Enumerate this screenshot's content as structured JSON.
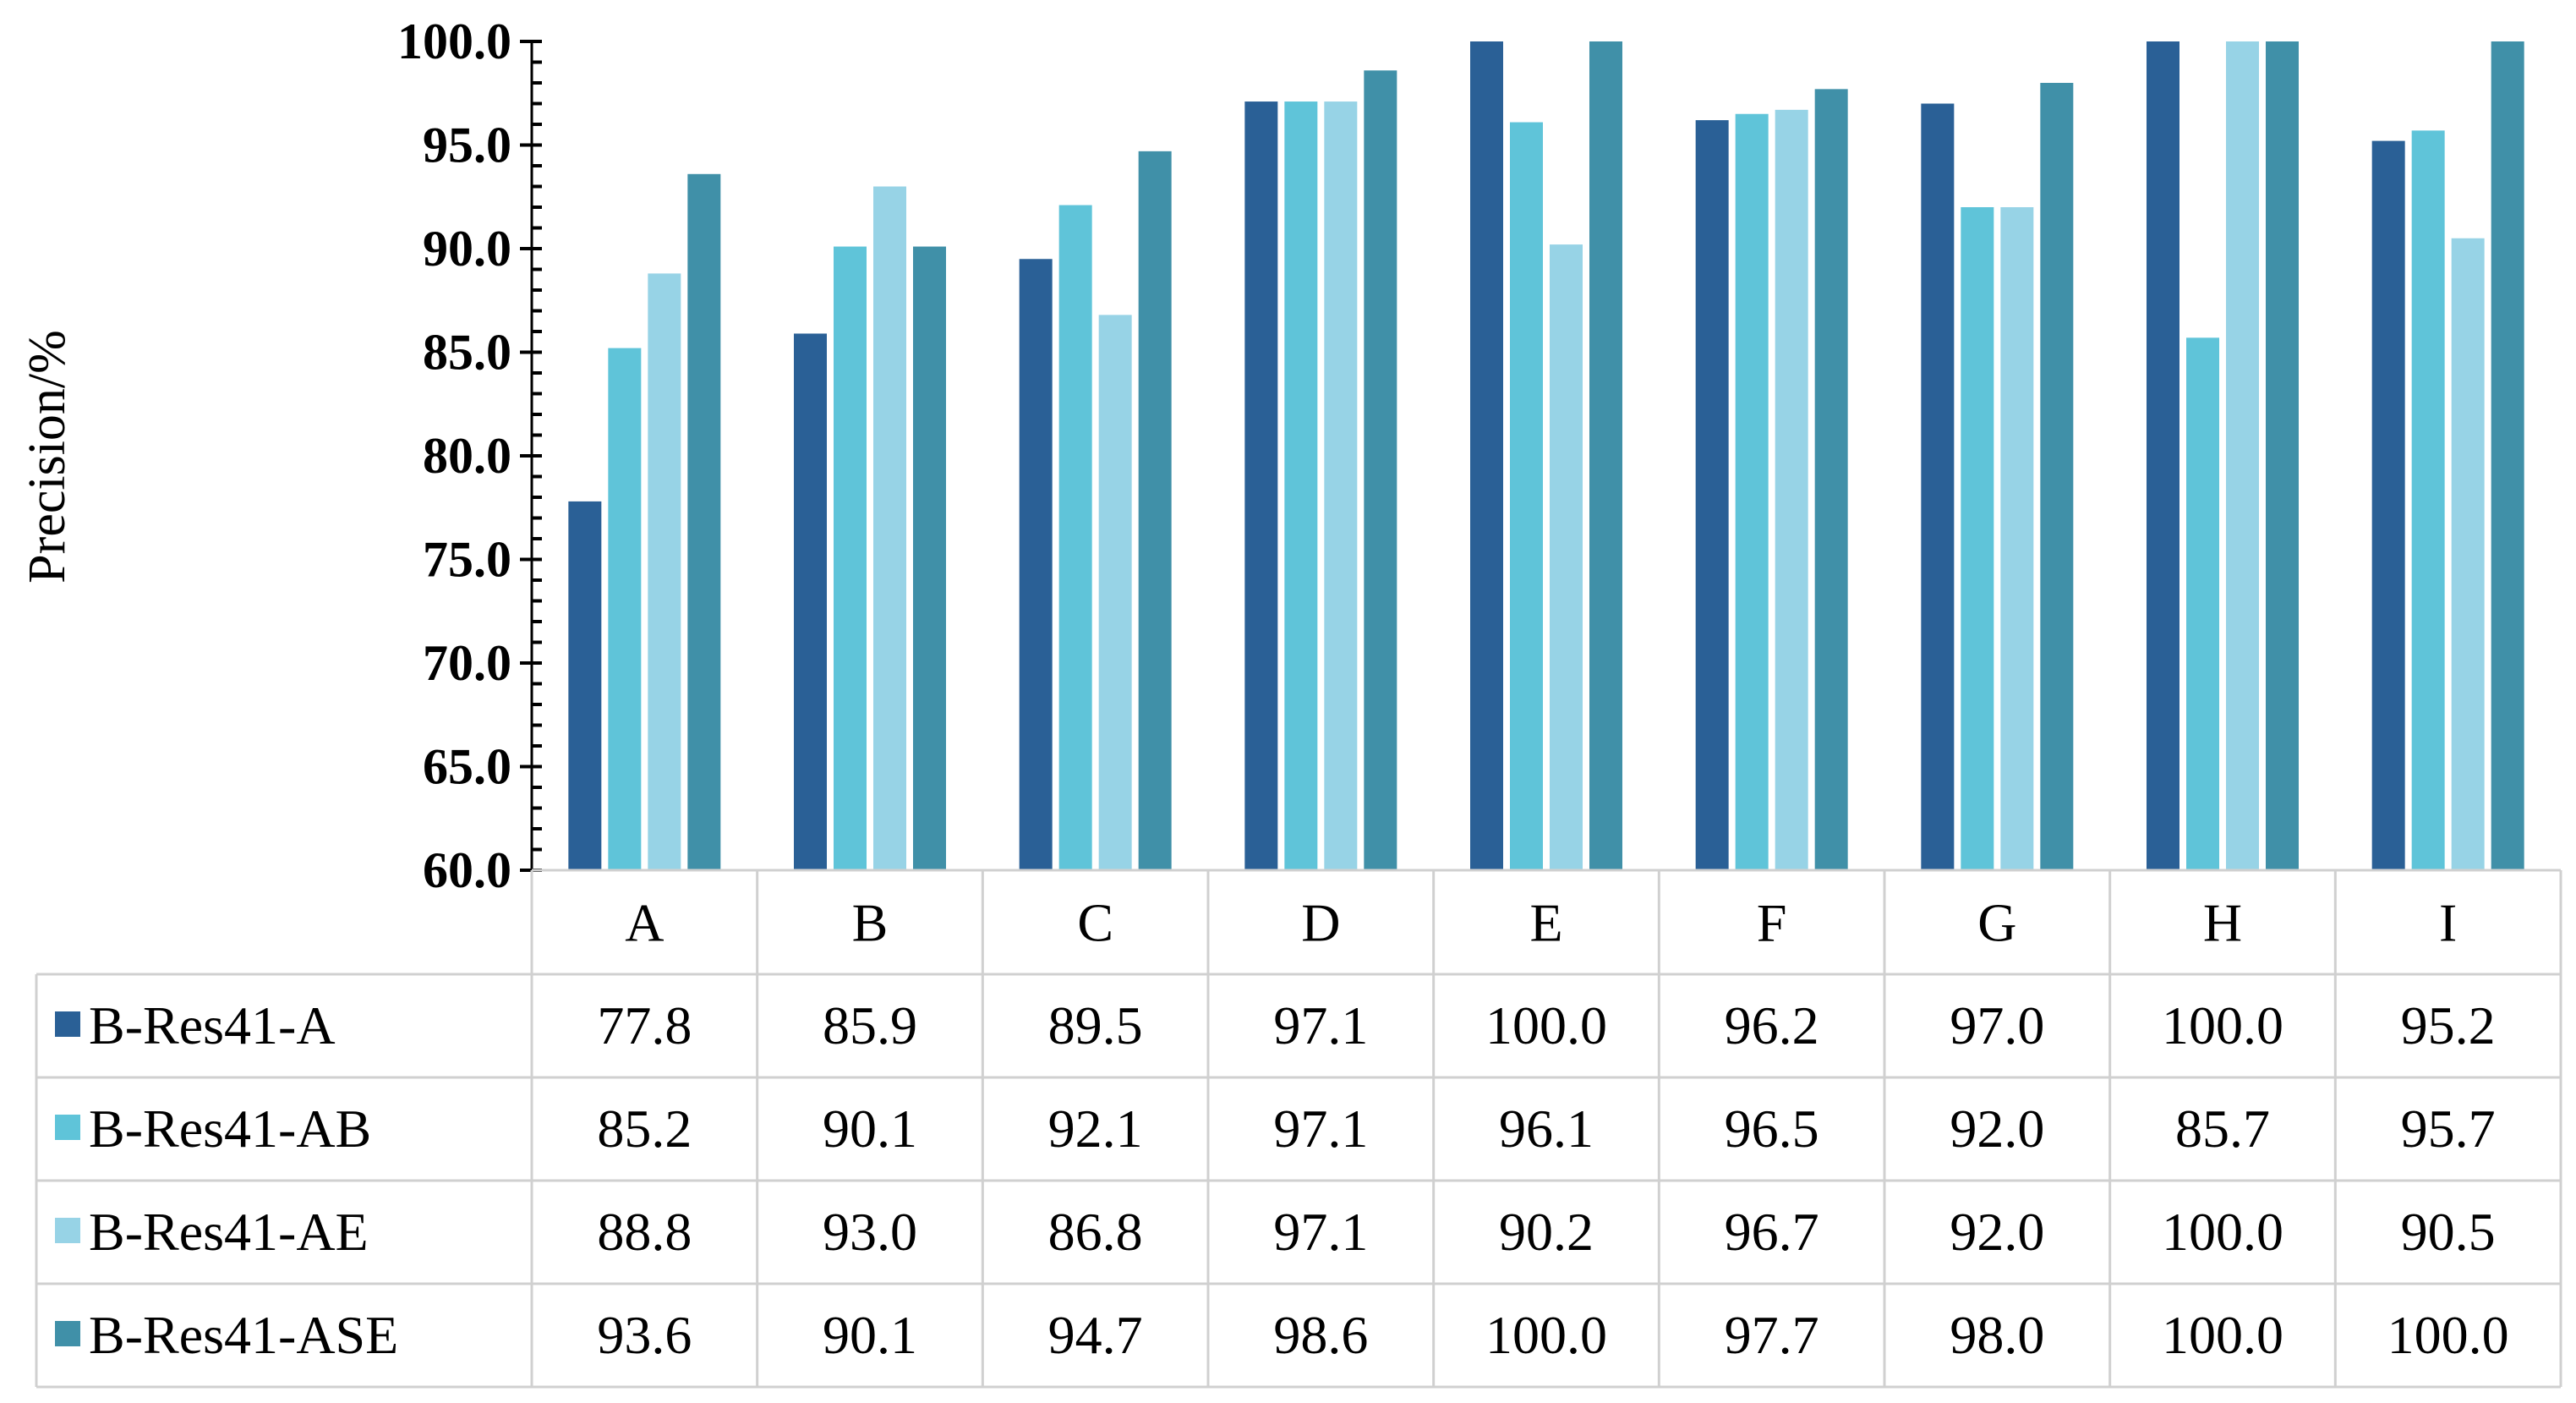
{
  "chart_data": {
    "type": "bar",
    "title": "",
    "xlabel": "",
    "ylabel": "Precision/%",
    "ylim": [
      60,
      100
    ],
    "yticks": [
      "60.0",
      "65.0",
      "70.0",
      "75.0",
      "80.0",
      "85.0",
      "90.0",
      "95.0",
      "100.0"
    ],
    "grid": false,
    "legend_placement": "data-table-left",
    "categories": [
      "A",
      "B",
      "C",
      "D",
      "E",
      "F",
      "G",
      "H",
      "I"
    ],
    "series": [
      {
        "name": "B-Res41-A",
        "color": "#2A6096",
        "values": [
          77.8,
          85.9,
          89.5,
          97.1,
          100.0,
          96.2,
          97.0,
          100.0,
          95.2
        ],
        "labels": [
          "77.8",
          "85.9",
          "89.5",
          "97.1",
          "100.0",
          "96.2",
          "97.0",
          "100.0",
          "95.2"
        ]
      },
      {
        "name": "B-Res41-AB",
        "color": "#5FC4D9",
        "values": [
          85.2,
          90.1,
          92.1,
          97.1,
          96.1,
          96.5,
          92.0,
          85.7,
          95.7
        ],
        "labels": [
          "85.2",
          "90.1",
          "92.1",
          "97.1",
          "96.1",
          "96.5",
          "92.0",
          "85.7",
          "95.7"
        ]
      },
      {
        "name": "B-Res41-AE",
        "color": "#97D3E6",
        "values": [
          88.8,
          93.0,
          86.8,
          97.1,
          90.2,
          96.7,
          92.0,
          100.0,
          90.5
        ],
        "labels": [
          "88.8",
          "93.0",
          "86.8",
          "97.1",
          "90.2",
          "96.7",
          "92.0",
          "100.0",
          "90.5"
        ]
      },
      {
        "name": "B-Res41-ASE",
        "color": "#4090A8",
        "values": [
          93.6,
          90.1,
          94.7,
          98.6,
          100.0,
          97.7,
          98.0,
          100.0,
          100.0
        ],
        "labels": [
          "93.6",
          "90.1",
          "94.7",
          "98.6",
          "100.0",
          "97.7",
          "98.0",
          "100.0",
          "100.0"
        ]
      }
    ]
  }
}
